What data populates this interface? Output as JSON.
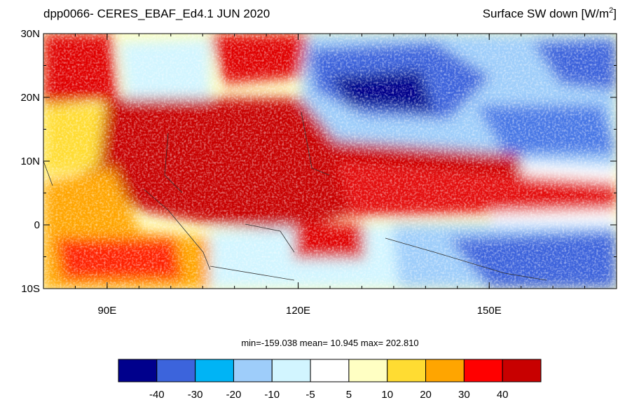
{
  "map": {
    "title_left": "dpp0066- CERES_EBAF_Ed4.1  JUN 2020",
    "title_right": {
      "text": "Surface SW down [W/m",
      "sup": "2",
      "end": "]"
    },
    "xlim": [
      80,
      170
    ],
    "ylim": [
      -10,
      30
    ],
    "xticks": [
      {
        "value": 90,
        "label": "90E"
      },
      {
        "value": 120,
        "label": "120E"
      },
      {
        "value": 150,
        "label": "150E"
      }
    ],
    "yticks": [
      {
        "value": -10,
        "label": "10S"
      },
      0,
      {
        "value": 10,
        "label": "10N"
      },
      {
        "value": 20,
        "label": "20N"
      },
      {
        "value": 30,
        "label": "30N"
      }
    ],
    "xminor": [
      80,
      85,
      90,
      95,
      100,
      105,
      110,
      115,
      120,
      125,
      130,
      135,
      140,
      145,
      150,
      155,
      160,
      165,
      170
    ],
    "yminor": [
      -10,
      -5,
      0,
      5,
      10,
      15,
      20,
      25,
      30
    ],
    "stats": "min=-159.038  mean=  10.945  max= 202.810",
    "colorbar": {
      "levels": [
        -40,
        -30,
        -20,
        -10,
        -5,
        5,
        10,
        20,
        30,
        40
      ],
      "colors": [
        "#00008c",
        "#3c64dc",
        "#00b4f5",
        "#9ecdfa",
        "#d2f5ff",
        "#ffffff",
        "#ffffc3",
        "#ffdc32",
        "#ffa500",
        "#ff0000",
        "#c80000"
      ]
    }
  }
}
